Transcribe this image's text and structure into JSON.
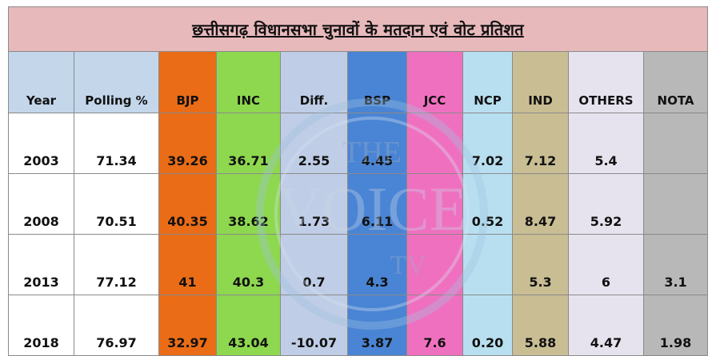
{
  "title": "छत्तीसगढ़ विधानसभा चुनावों के मतदान एवं वोट प्रतिशत",
  "columns": [
    "Year",
    "Polling %",
    "BJP",
    "INC",
    "Diff.",
    "BSP",
    "JCC",
    "NCP",
    "IND",
    "OTHERS",
    "NOTA"
  ],
  "column_colors": [
    "#c3d6ea",
    "#c3d6ea",
    "#ea6c16",
    "#8ed84f",
    "#bfcde6",
    "#4a84d4",
    "#f070c0",
    "#b8dff0",
    "#c9bd93",
    "#e7e3ee",
    "#b8b8b8"
  ],
  "rows": [
    [
      "2003",
      "71.34",
      "39.26",
      "36.71",
      "2.55",
      "4.45",
      "",
      "7.02",
      "7.12",
      "5.4",
      ""
    ],
    [
      "2008",
      "70.51",
      "40.35",
      "38.62",
      "1.73",
      "6.11",
      "",
      "0.52",
      "8.47",
      "5.92",
      ""
    ],
    [
      "2013",
      "77.12",
      "41",
      "40.3",
      "0.7",
      "4.3",
      "",
      "",
      "5.3",
      "6",
      "3.1"
    ],
    [
      "2018",
      "76.97",
      "32.97",
      "43.04",
      "-10.07",
      "3.87",
      "7.6",
      "0.20",
      "5.88",
      "4.47",
      "1.98"
    ]
  ],
  "watermark": {
    "line1": "THE",
    "line2": "VOICE",
    "line3": "TV"
  }
}
